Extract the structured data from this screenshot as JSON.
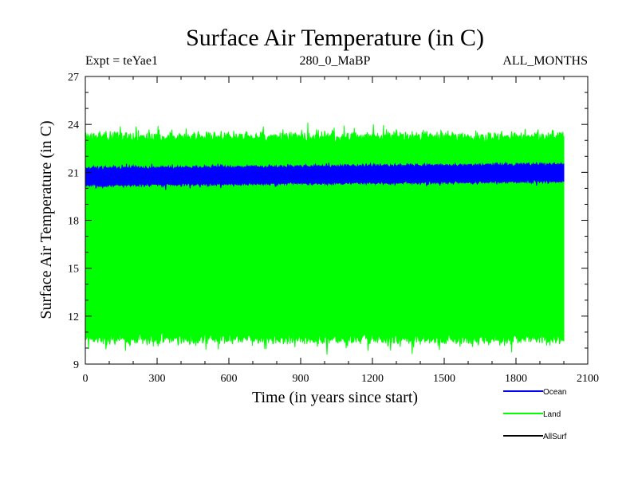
{
  "chart_data": {
    "type": "line",
    "title": "Surface Air Temperature (in C)",
    "annotations": {
      "left": "Expt = teYae1",
      "center": "280_0_MaBP",
      "right": "ALL_MONTHS"
    },
    "xlabel": "Time (in years since start)",
    "ylabel": "Surface Air Temperature (in C)",
    "xlim": [
      0,
      2100
    ],
    "ylim": [
      9,
      27
    ],
    "x_ticks": [
      0,
      300,
      600,
      900,
      1200,
      1500,
      1800,
      2100
    ],
    "y_ticks": [
      9,
      12,
      15,
      18,
      21,
      24,
      27
    ],
    "x_ticks_labels": [
      "0",
      "300",
      "600",
      "900",
      "1200",
      "1500",
      "1800",
      "2100"
    ],
    "y_ticks_labels": [
      "9",
      "12",
      "15",
      "18",
      "21",
      "24",
      "27"
    ],
    "x_range_data": [
      0,
      2000
    ],
    "series": [
      {
        "name": "Land",
        "color": "#00ff00",
        "kind": "monthly_envelope",
        "upper_mean": 23.2,
        "upper_jitter": 0.55,
        "lower_mean": 10.6,
        "lower_jitter": 0.6,
        "min": 9.0,
        "max": 24.2
      },
      {
        "name": "Ocean",
        "color": "#0000ff",
        "kind": "monthly_envelope",
        "upper_mean": 21.25,
        "upper_jitter": 0.18,
        "upper_trend": 0.25,
        "lower_mean": 20.2,
        "lower_jitter": 0.18,
        "lower_trend": 0.25,
        "min": 19.8,
        "max": 21.6
      },
      {
        "name": "AllSurf",
        "color": "#000000",
        "kind": "hidden",
        "mean": 20.7
      }
    ],
    "legend": [
      "Ocean",
      "Land",
      "AllSurf"
    ],
    "legend_position": "bottom-right"
  }
}
